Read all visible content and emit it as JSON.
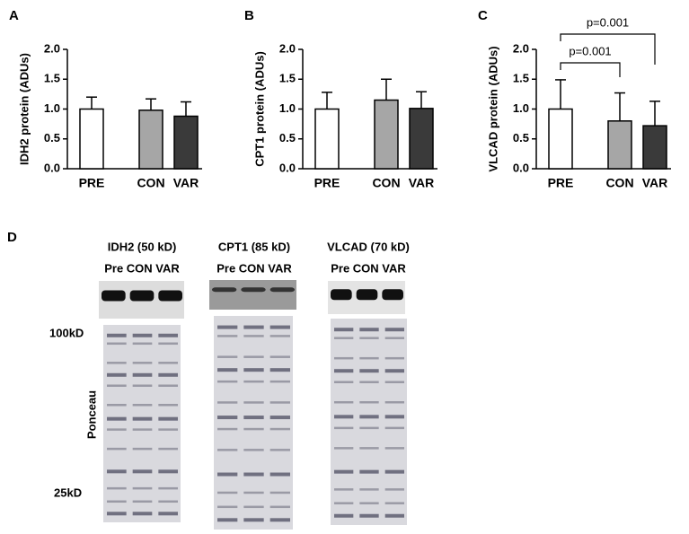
{
  "chart_data": [
    {
      "type": "bar",
      "panel": "A",
      "ylabel": "IDH2 protein (ADUs)",
      "categories": [
        "PRE",
        "CON",
        "VAR"
      ],
      "values": [
        1.0,
        0.98,
        0.88
      ],
      "errors": [
        0.2,
        0.19,
        0.24
      ],
      "colors": [
        "#ffffff",
        "#a6a6a6",
        "#3a3a3a"
      ],
      "ylim": [
        0,
        2
      ],
      "yticks": [
        {
          "value": 0,
          "label": "0.0"
        },
        0.5,
        {
          "value": 1,
          "label": "1.0"
        },
        1.5,
        {
          "value": 2,
          "label": "2.0"
        }
      ]
    },
    {
      "type": "bar",
      "panel": "B",
      "ylabel": "CPT1 protein (ADUs)",
      "categories": [
        "PRE",
        "CON",
        "VAR"
      ],
      "values": [
        1.0,
        1.15,
        1.01
      ],
      "errors": [
        0.28,
        0.35,
        0.28
      ],
      "colors": [
        "#ffffff",
        "#a6a6a6",
        "#3a3a3a"
      ],
      "ylim": [
        0,
        2
      ],
      "yticks": [
        {
          "value": 0,
          "label": "0.0"
        },
        0.5,
        {
          "value": 1,
          "label": "1.0"
        },
        1.5,
        {
          "value": 2,
          "label": "2.0"
        }
      ]
    },
    {
      "type": "bar",
      "panel": "C",
      "ylabel": "VLCAD protein (ADUs)",
      "categories": [
        "PRE",
        "CON",
        "VAR"
      ],
      "values": [
        1.0,
        0.8,
        0.72
      ],
      "errors": [
        0.49,
        0.47,
        0.41
      ],
      "colors": [
        "#ffffff",
        "#a6a6a6",
        "#3a3a3a"
      ],
      "ylim": [
        0,
        2
      ],
      "yticks": [
        {
          "value": 0,
          "label": "0.0"
        },
        0.5,
        {
          "value": 1,
          "label": "1.0"
        },
        1.5,
        {
          "value": 2,
          "label": "2.0"
        }
      ],
      "annotations": [
        "p=0.001",
        "p=0.001"
      ]
    }
  ],
  "blots": {
    "panel": "D",
    "side_label": "Ponceau",
    "markers": [
      "100kD",
      "25kD"
    ],
    "proteins": [
      {
        "title": "IDH2 (50 kD)",
        "lanes": "Pre CON VAR"
      },
      {
        "title": "CPT1 (85 kD)",
        "lanes": "Pre CON VAR"
      },
      {
        "title": "VLCAD (70 kD)",
        "lanes": "Pre CON VAR"
      }
    ]
  }
}
